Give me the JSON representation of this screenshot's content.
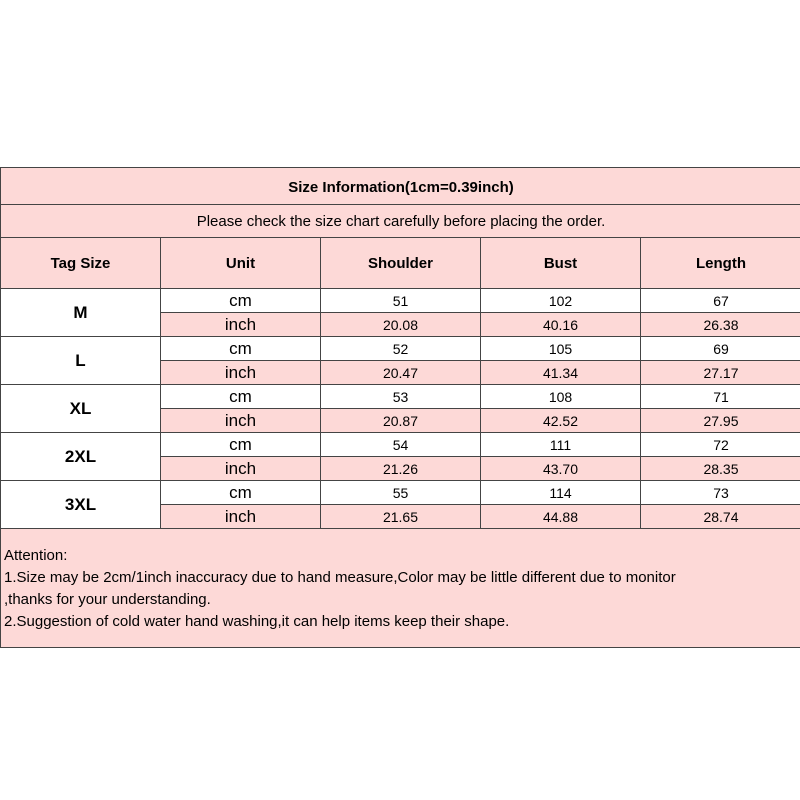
{
  "title": "Size Information(1cm=0.39inch)",
  "subtitle": "Please check the size chart carefully before placing the order.",
  "columns": [
    "Tag Size",
    "Unit",
    "Shoulder",
    "Bust",
    "Length"
  ],
  "rows": [
    {
      "size": "M",
      "cm": {
        "unit": "cm",
        "values": [
          "51",
          "102",
          "67"
        ]
      },
      "inch": {
        "unit": "inch",
        "values": [
          "20.08",
          "40.16",
          "26.38"
        ]
      }
    },
    {
      "size": "L",
      "cm": {
        "unit": "cm",
        "values": [
          "52",
          "105",
          "69"
        ]
      },
      "inch": {
        "unit": "inch",
        "values": [
          "20.47",
          "41.34",
          "27.17"
        ]
      }
    },
    {
      "size": "XL",
      "cm": {
        "unit": "cm",
        "values": [
          "53",
          "108",
          "71"
        ]
      },
      "inch": {
        "unit": "inch",
        "values": [
          "20.87",
          "42.52",
          "27.95"
        ]
      }
    },
    {
      "size": "2XL",
      "cm": {
        "unit": "cm",
        "values": [
          "54",
          "111",
          "72"
        ]
      },
      "inch": {
        "unit": "inch",
        "values": [
          "21.26",
          "43.70",
          "28.35"
        ]
      }
    },
    {
      "size": "3XL",
      "cm": {
        "unit": "cm",
        "values": [
          "55",
          "114",
          "73"
        ]
      },
      "inch": {
        "unit": "inch",
        "values": [
          "21.65",
          "44.88",
          "28.74"
        ]
      }
    }
  ],
  "attention": {
    "heading": "Attention:",
    "lines": [
      "1.Size may be 2cm/1inch inaccuracy due to hand measure,Color may be little different due to monitor",
      ",thanks for your understanding.",
      "2.Suggestion of cold water hand washing,it can help items keep their shape."
    ]
  },
  "colors": {
    "pink": "#fdd9d7",
    "border": "#444444"
  }
}
